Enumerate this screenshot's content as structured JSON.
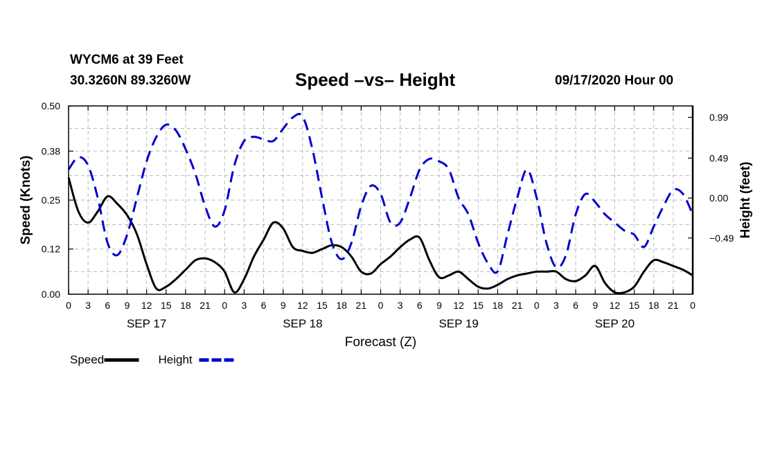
{
  "header": {
    "station": "WYCM6 at 39 Feet",
    "coordinates": "30.3260N 89.3260W",
    "title": "Speed –vs– Height",
    "timestamp": "09/17/2020 Hour 00"
  },
  "chart_data": {
    "type": "line",
    "xlabel": "Forecast (Z)",
    "ylabel_left": "Speed (Knots)",
    "ylabel_right": "Height (feet)",
    "x_range_hours": [
      0,
      96
    ],
    "x_tick_step_hours": 3,
    "x_tick_labels": [
      "0",
      "3",
      "6",
      "9",
      "12",
      "15",
      "18",
      "21",
      "0",
      "3",
      "6",
      "9",
      "12",
      "15",
      "18",
      "21",
      "0",
      "3",
      "6",
      "9",
      "12",
      "15",
      "18",
      "21",
      "0",
      "3",
      "6",
      "9",
      "12",
      "15",
      "18",
      "21",
      "0"
    ],
    "day_labels": [
      {
        "label": "SEP 17",
        "hour": 12
      },
      {
        "label": "SEP 18",
        "hour": 36
      },
      {
        "label": "SEP 19",
        "hour": 60
      },
      {
        "label": "SEP 20",
        "hour": 84
      }
    ],
    "left_axis": {
      "range": [
        0,
        0.5
      ],
      "ticks": [
        0.0,
        0.12,
        0.25,
        0.38,
        0.5
      ],
      "tick_labels": [
        "0.00",
        "0.12",
        "0.25",
        "0.38",
        "0.50"
      ]
    },
    "right_axis": {
      "range": [
        -1.18,
        1.13
      ],
      "ticks": [
        0.99,
        0.49,
        0.0,
        -0.49
      ],
      "tick_labels": [
        "0.99",
        "0.49",
        "0.00",
        "−0.49"
      ]
    },
    "grid": true,
    "legend": [
      {
        "name": "Speed",
        "color": "#000000",
        "style": "solid"
      },
      {
        "name": "Height",
        "color": "#0000cc",
        "style": "dashed"
      }
    ],
    "series": [
      {
        "name": "Speed",
        "axis": "left",
        "color": "#000000",
        "style": "solid",
        "x": [
          0,
          1.5,
          3,
          4.5,
          6,
          7.5,
          9,
          10.5,
          12,
          13.5,
          15,
          16.5,
          18,
          19.5,
          21,
          22.5,
          24,
          25.5,
          27,
          28.5,
          30,
          31.5,
          33,
          34.5,
          36,
          37.5,
          39,
          40.5,
          42,
          43.5,
          45,
          46.5,
          48,
          49.5,
          51,
          52.5,
          54,
          55.5,
          57,
          58.5,
          60,
          61.5,
          63,
          64.5,
          66,
          67.5,
          69,
          70.5,
          72,
          73.5,
          75,
          76.5,
          78,
          79.5,
          81,
          82.5,
          84,
          85.5,
          87,
          88.5,
          90,
          91.5,
          93,
          94.5,
          96
        ],
        "values": [
          0.31,
          0.22,
          0.19,
          0.22,
          0.26,
          0.24,
          0.21,
          0.16,
          0.08,
          0.015,
          0.02,
          0.04,
          0.065,
          0.09,
          0.095,
          0.085,
          0.06,
          0.005,
          0.04,
          0.1,
          0.145,
          0.19,
          0.175,
          0.125,
          0.115,
          0.11,
          0.12,
          0.13,
          0.125,
          0.1,
          0.06,
          0.055,
          0.08,
          0.1,
          0.125,
          0.145,
          0.15,
          0.09,
          0.045,
          0.05,
          0.06,
          0.04,
          0.02,
          0.015,
          0.025,
          0.04,
          0.05,
          0.055,
          0.06,
          0.06,
          0.06,
          0.04,
          0.035,
          0.05,
          0.075,
          0.03,
          0.005,
          0.005,
          0.02,
          0.06,
          0.09,
          0.085,
          0.075,
          0.065,
          0.05
        ]
      },
      {
        "name": "Height",
        "axis": "right",
        "color": "#0000cc",
        "style": "dashed",
        "x": [
          0,
          1.5,
          3,
          4.5,
          6,
          7.5,
          9,
          10.5,
          12,
          13.5,
          15,
          16.5,
          18,
          19.5,
          21,
          22.5,
          24,
          25.5,
          27,
          28.5,
          30,
          31.5,
          33,
          34.5,
          36,
          37.5,
          39,
          40.5,
          42,
          43.5,
          45,
          46.5,
          48,
          49.5,
          51,
          52.5,
          54,
          55.5,
          57,
          58.5,
          60,
          61.5,
          63,
          64.5,
          66,
          67.5,
          69,
          70.5,
          72,
          73.5,
          75,
          76.5,
          78,
          79.5,
          81,
          82.5,
          84,
          85.5,
          87,
          88.5,
          90,
          91.5,
          93,
          94.5,
          96
        ],
        "values": [
          0.35,
          0.5,
          0.4,
          0.0,
          -0.55,
          -0.7,
          -0.45,
          0.0,
          0.45,
          0.75,
          0.9,
          0.83,
          0.6,
          0.3,
          -0.1,
          -0.35,
          -0.15,
          0.4,
          0.7,
          0.75,
          0.72,
          0.7,
          0.85,
          0.99,
          1.0,
          0.6,
          0.0,
          -0.55,
          -0.75,
          -0.55,
          -0.1,
          0.15,
          0.05,
          -0.3,
          -0.3,
          0.0,
          0.35,
          0.48,
          0.45,
          0.35,
          0.0,
          -0.2,
          -0.55,
          -0.8,
          -0.9,
          -0.45,
          0.0,
          0.35,
          0.0,
          -0.55,
          -0.85,
          -0.7,
          -0.2,
          0.05,
          -0.05,
          -0.2,
          -0.3,
          -0.4,
          -0.45,
          -0.6,
          -0.35,
          -0.1,
          0.1,
          0.05,
          -0.2
        ]
      }
    ]
  }
}
